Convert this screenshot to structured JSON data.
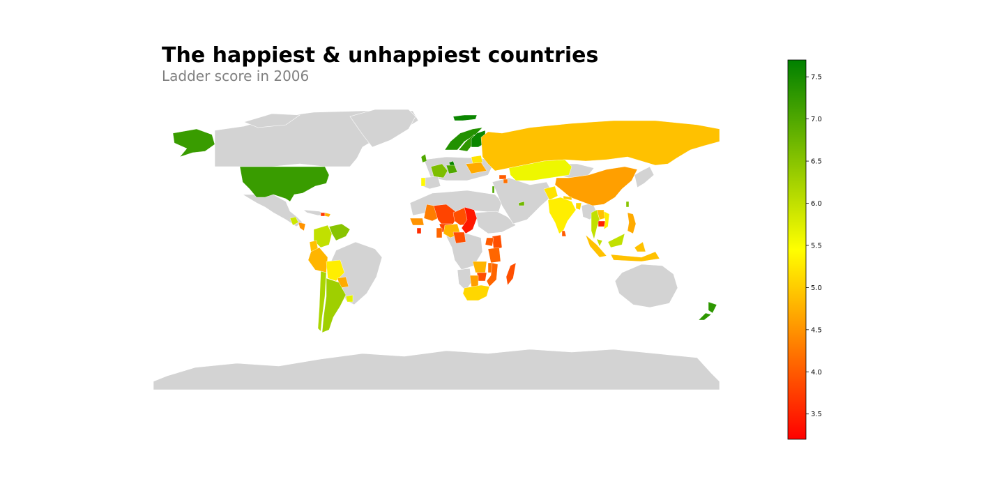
{
  "title": "The happiest & unhappiest countries",
  "subtitle": "Ladder score in 2006",
  "colors": {
    "no_data": "#d3d3d3",
    "low": "#ff0000",
    "mid": "#ffff00",
    "high": "#008000",
    "background": "#ffffff"
  },
  "colorbar": {
    "min": 3.2,
    "max": 7.7,
    "ticks": [
      {
        "value": 7.5,
        "label": "7.5"
      },
      {
        "value": 7.0,
        "label": "7.0"
      },
      {
        "value": 6.5,
        "label": "6.5"
      },
      {
        "value": 6.0,
        "label": "6.0"
      },
      {
        "value": 5.5,
        "label": "5.5"
      },
      {
        "value": 5.0,
        "label": "5.0"
      },
      {
        "value": 4.5,
        "label": "4.5"
      },
      {
        "value": 4.0,
        "label": "4.0"
      },
      {
        "value": 3.5,
        "label": "3.5"
      }
    ]
  },
  "chart_data": {
    "type": "choropleth",
    "metric": "Ladder score",
    "year": 2006,
    "scale": {
      "min": 3.2,
      "max": 7.7
    },
    "countries": [
      {
        "name": "Canada",
        "score": null
      },
      {
        "name": "Greenland",
        "score": null
      },
      {
        "name": "United States",
        "score": 7.2
      },
      {
        "name": "Mexico",
        "score": null
      },
      {
        "name": "Guatemala",
        "score": 5.9
      },
      {
        "name": "Nicaragua",
        "score": 4.5
      },
      {
        "name": "Cuba",
        "score": null
      },
      {
        "name": "Haiti",
        "score": 3.7
      },
      {
        "name": "Dominican Republic",
        "score": 4.8
      },
      {
        "name": "Colombia",
        "score": 6.0
      },
      {
        "name": "Venezuela",
        "score": 6.5
      },
      {
        "name": "Ecuador",
        "score": 4.9
      },
      {
        "name": "Peru",
        "score": 4.8
      },
      {
        "name": "Bolivia",
        "score": 5.3
      },
      {
        "name": "Brazil",
        "score": null
      },
      {
        "name": "Paraguay",
        "score": 4.7
      },
      {
        "name": "Uruguay",
        "score": 5.7
      },
      {
        "name": "Chile",
        "score": 6.2
      },
      {
        "name": "Argentina",
        "score": 6.3
      },
      {
        "name": "Iceland",
        "score": 7.6
      },
      {
        "name": "Norway",
        "score": 7.4
      },
      {
        "name": "Sweden",
        "score": 7.3
      },
      {
        "name": "Finland",
        "score": 7.6
      },
      {
        "name": "Denmark",
        "score": 7.6
      },
      {
        "name": "United Kingdom",
        "score": 7.0
      },
      {
        "name": "France",
        "score": 6.6
      },
      {
        "name": "Germany",
        "score": 7.0
      },
      {
        "name": "Spain",
        "score": null
      },
      {
        "name": "Portugal",
        "score": 5.4
      },
      {
        "name": "Italy",
        "score": null
      },
      {
        "name": "Poland",
        "score": null
      },
      {
        "name": "Belarus",
        "score": 5.2
      },
      {
        "name": "Ukraine",
        "score": 4.7
      },
      {
        "name": "Russia",
        "score": 4.9
      },
      {
        "name": "Kazakhstan",
        "score": 5.6
      },
      {
        "name": "Georgia",
        "score": 4.0
      },
      {
        "name": "Armenia",
        "score": 4.2
      },
      {
        "name": "Mongolia",
        "score": null
      },
      {
        "name": "China",
        "score": 4.6
      },
      {
        "name": "Japan",
        "score": null
      },
      {
        "name": "South Korea",
        "score": null
      },
      {
        "name": "Taiwan",
        "score": 6.5
      },
      {
        "name": "Israel",
        "score": 7.0
      },
      {
        "name": "Iran",
        "score": null
      },
      {
        "name": "Saudi Arabia",
        "score": null
      },
      {
        "name": "United Arab Emirates",
        "score": 6.7
      },
      {
        "name": "Afghanistan",
        "score": null
      },
      {
        "name": "Pakistan",
        "score": 5.2
      },
      {
        "name": "India",
        "score": 5.3
      },
      {
        "name": "Nepal",
        "score": 5.0
      },
      {
        "name": "Bangladesh",
        "score": 5.1
      },
      {
        "name": "Sri Lanka",
        "score": 4.0
      },
      {
        "name": "Myanmar",
        "score": null
      },
      {
        "name": "Thailand",
        "score": 6.0
      },
      {
        "name": "Laos",
        "score": 4.9
      },
      {
        "name": "Cambodia",
        "score": 3.5
      },
      {
        "name": "Vietnam",
        "score": 5.3
      },
      {
        "name": "Philippines",
        "score": 4.7
      },
      {
        "name": "Malaysia",
        "score": 6.0
      },
      {
        "name": "Indonesia",
        "score": 4.9
      },
      {
        "name": "Australia",
        "score": null
      },
      {
        "name": "New Zealand",
        "score": 7.3
      },
      {
        "name": "Mauritania",
        "score": 4.3
      },
      {
        "name": "Mali",
        "score": 3.8
      },
      {
        "name": "Senegal",
        "score": 4.5
      },
      {
        "name": "Niger",
        "score": 3.9
      },
      {
        "name": "Chad",
        "score": 3.4
      },
      {
        "name": "Burkina Faso",
        "score": 3.8
      },
      {
        "name": "Nigeria",
        "score": 4.8
      },
      {
        "name": "Cameroon",
        "score": 3.9
      },
      {
        "name": "Ghana",
        "score": 4.1
      },
      {
        "name": "Sierra Leone",
        "score": 3.6
      },
      {
        "name": "Kenya",
        "score": 3.9
      },
      {
        "name": "Tanzania",
        "score": 4.1
      },
      {
        "name": "Uganda",
        "score": 4.0
      },
      {
        "name": "Zambia",
        "score": 4.8
      },
      {
        "name": "Malawi",
        "score": 4.2
      },
      {
        "name": "Mozambique",
        "score": 4.1
      },
      {
        "name": "Zimbabwe",
        "score": 3.9
      },
      {
        "name": "Botswana",
        "score": 4.6
      },
      {
        "name": "South Africa",
        "score": 5.1
      },
      {
        "name": "Madagascar",
        "score": 3.9
      },
      {
        "name": "Egypt",
        "score": null
      },
      {
        "name": "Libya",
        "score": null
      },
      {
        "name": "Algeria",
        "score": null
      },
      {
        "name": "Sudan",
        "score": null
      },
      {
        "name": "Ethiopia",
        "score": null
      },
      {
        "name": "DR Congo",
        "score": null
      },
      {
        "name": "Angola",
        "score": null
      },
      {
        "name": "Namibia",
        "score": null
      },
      {
        "name": "Antarctica",
        "score": null
      }
    ]
  }
}
